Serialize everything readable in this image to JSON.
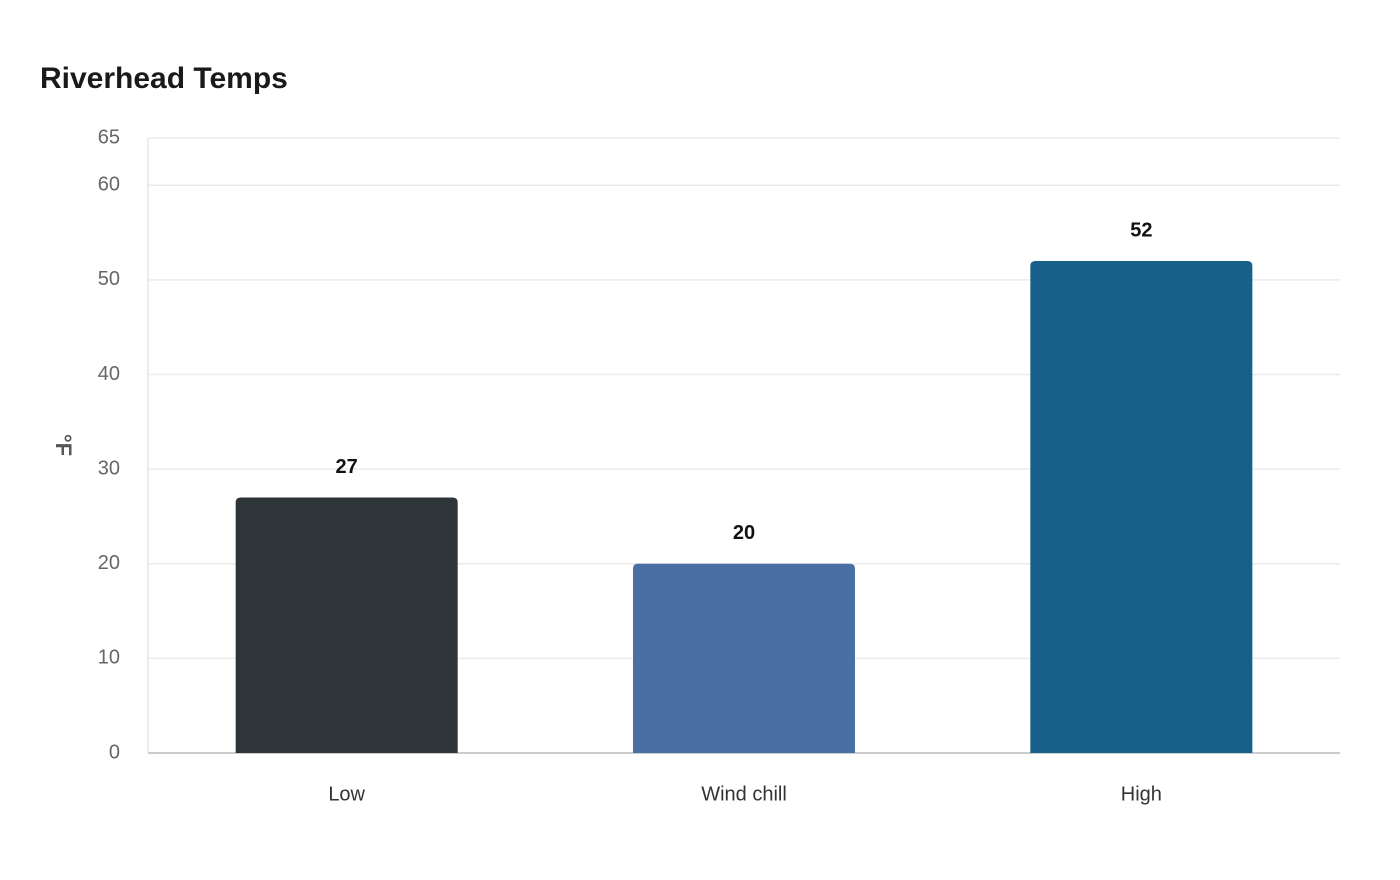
{
  "chart_data": {
    "type": "bar",
    "title": "Riverhead Temps",
    "y_label": "°F",
    "categories": [
      "Low",
      "Wind chill",
      "High"
    ],
    "values": [
      27,
      20,
      52
    ],
    "colors": [
      "#2e3538",
      "#4a6fa5",
      "#176089"
    ],
    "ylim": [
      0,
      65
    ],
    "yticks": [
      0,
      10,
      20,
      30,
      40,
      50,
      60,
      65
    ],
    "grid": true
  }
}
